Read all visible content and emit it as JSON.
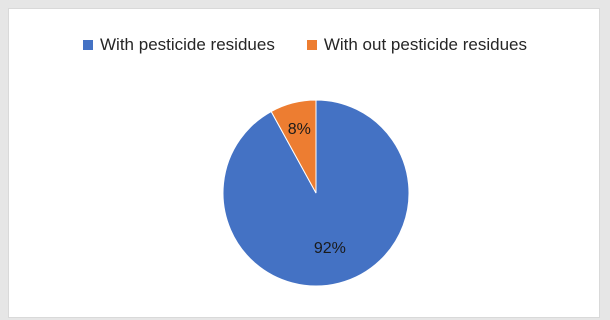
{
  "chart_data": {
    "type": "pie",
    "title": "",
    "categories": [
      "With pesticide residues",
      "With out pesticide residues"
    ],
    "values": [
      92,
      8
    ],
    "data_labels": [
      "92%",
      "8%"
    ],
    "colors": [
      "#4472c4",
      "#ed7d31"
    ],
    "legend_position": "top",
    "start_angle": "12 o'clock, clockwise"
  }
}
